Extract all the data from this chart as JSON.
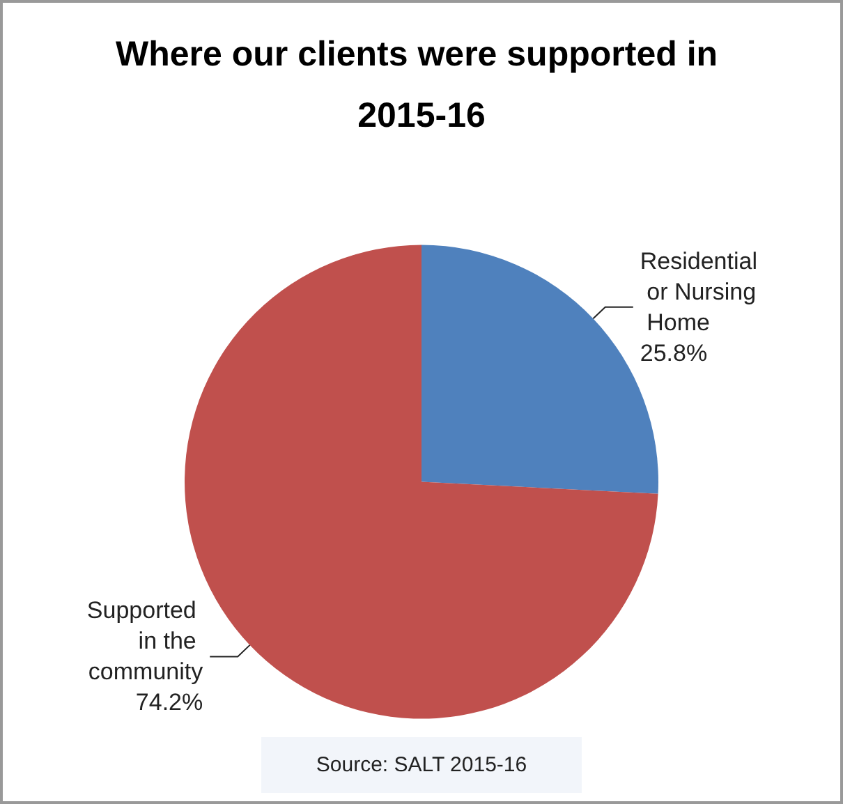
{
  "chart_data": {
    "type": "pie",
    "title": "Where our clients were supported in 2015-16",
    "categories": [
      "Residential or Nursing Home",
      "Supported in the community"
    ],
    "values": [
      25.8,
      74.2
    ],
    "colors": [
      "#4f81bd",
      "#c0504d"
    ],
    "value_labels": [
      "25.8%",
      "74.2%"
    ],
    "annotations": [
      "Source: SALT 2015-16"
    ],
    "legend": false
  }
}
